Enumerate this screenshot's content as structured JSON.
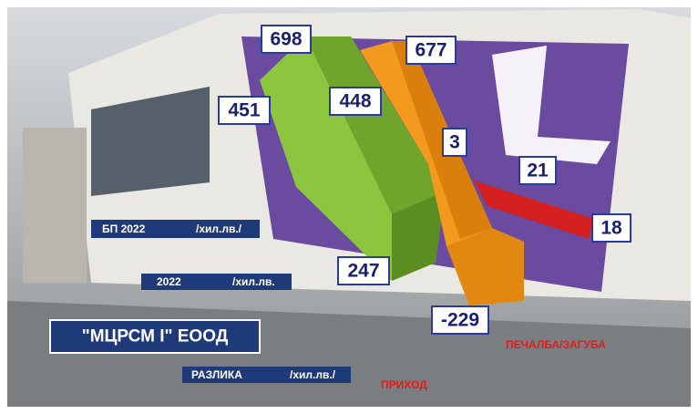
{
  "company": "\"МЦРСМ I\" ЕООД",
  "legend": [
    {
      "label": "БП 2022",
      "unit": "/хил.лв./"
    },
    {
      "label": "2022",
      "unit": "/хил.лв."
    },
    {
      "label": "РАЗЛИКА",
      "unit": "/хил.лв./"
    }
  ],
  "categories": [
    "ПРИХОД",
    "ПЕЧАЛБА/ЗАГУБА"
  ],
  "revenue_labels": [
    698,
    451,
    448,
    247
  ],
  "other_labels": [
    677,
    3,
    -229
  ],
  "profit_labels": [
    21,
    18
  ]
}
